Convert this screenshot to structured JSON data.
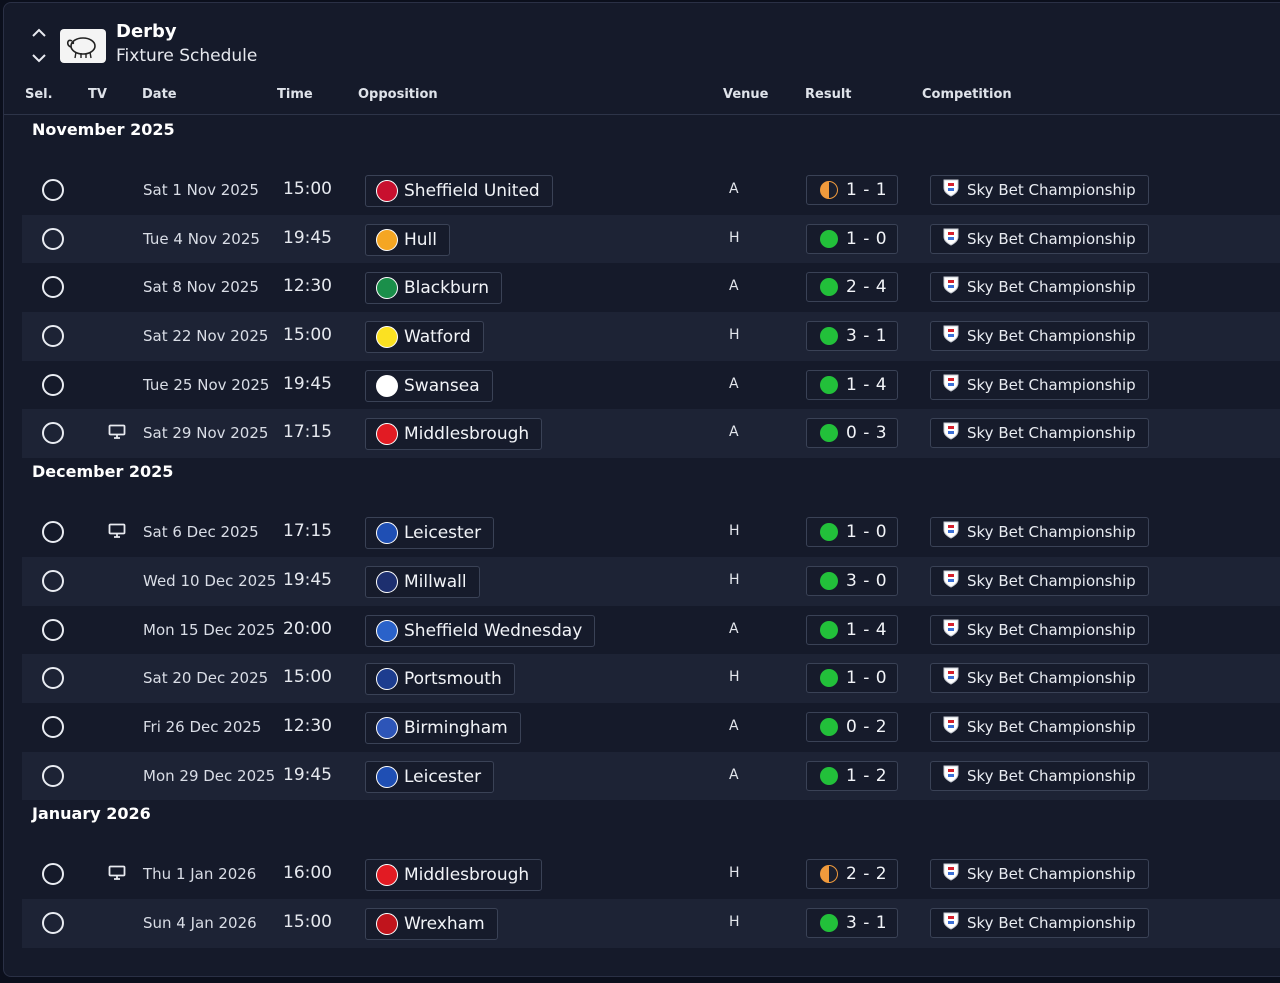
{
  "header": {
    "team": "Derby",
    "subtitle": "Fixture Schedule",
    "up_icon": "chevron-up-icon",
    "down_icon": "chevron-down-icon",
    "badge_icon": "ram-badge-icon"
  },
  "columns": {
    "sel": "Sel.",
    "tv": "TV",
    "date": "Date",
    "time": "Time",
    "opposition": "Opposition",
    "venue": "Venue",
    "result": "Result",
    "competition": "Competition"
  },
  "colors": {
    "win": "#22c03a",
    "draw_left": "#f09a3c",
    "draw_right": "#1a1f2e"
  },
  "months": [
    {
      "label": "November 2025",
      "fixtures": [
        {
          "tv": false,
          "date": "Sat 1 Nov 2025",
          "time": "15:00",
          "opponent": "Sheffield United",
          "crest": "#c8102e",
          "venue": "A",
          "outcome": "draw",
          "score": "1 - 1",
          "competition": "Sky Bet Championship"
        },
        {
          "tv": false,
          "date": "Tue 4 Nov 2025",
          "time": "19:45",
          "opponent": "Hull",
          "crest": "#f5a623",
          "venue": "H",
          "outcome": "win",
          "score": "1 - 0",
          "competition": "Sky Bet Championship"
        },
        {
          "tv": false,
          "date": "Sat 8 Nov 2025",
          "time": "12:30",
          "opponent": "Blackburn",
          "crest": "#1a8f4a",
          "venue": "A",
          "outcome": "win",
          "score": "2 - 4",
          "competition": "Sky Bet Championship"
        },
        {
          "tv": false,
          "date": "Sat 22 Nov 2025",
          "time": "15:00",
          "opponent": "Watford",
          "crest": "#fbe122",
          "venue": "H",
          "outcome": "win",
          "score": "3 - 1",
          "competition": "Sky Bet Championship"
        },
        {
          "tv": false,
          "date": "Tue 25 Nov 2025",
          "time": "19:45",
          "opponent": "Swansea",
          "crest": "#ffffff",
          "venue": "A",
          "outcome": "win",
          "score": "1 - 4",
          "competition": "Sky Bet Championship"
        },
        {
          "tv": true,
          "date": "Sat 29 Nov 2025",
          "time": "17:15",
          "opponent": "Middlesbrough",
          "crest": "#e21b23",
          "venue": "A",
          "outcome": "win",
          "score": "0 - 3",
          "competition": "Sky Bet Championship"
        }
      ]
    },
    {
      "label": "December 2025",
      "fixtures": [
        {
          "tv": true,
          "date": "Sat 6 Dec 2025",
          "time": "17:15",
          "opponent": "Leicester",
          "crest": "#1f4fb4",
          "venue": "H",
          "outcome": "win",
          "score": "1 - 0",
          "competition": "Sky Bet Championship"
        },
        {
          "tv": false,
          "date": "Wed 10 Dec 2025",
          "time": "19:45",
          "opponent": "Millwall",
          "crest": "#1d2f6f",
          "venue": "H",
          "outcome": "win",
          "score": "3 - 0",
          "competition": "Sky Bet Championship"
        },
        {
          "tv": false,
          "date": "Mon 15 Dec 2025",
          "time": "20:00",
          "opponent": "Sheffield Wednesday",
          "crest": "#2a62c9",
          "venue": "A",
          "outcome": "win",
          "score": "1 - 4",
          "competition": "Sky Bet Championship"
        },
        {
          "tv": false,
          "date": "Sat 20 Dec 2025",
          "time": "15:00",
          "opponent": "Portsmouth",
          "crest": "#1d3d8f",
          "venue": "H",
          "outcome": "win",
          "score": "1 - 0",
          "competition": "Sky Bet Championship"
        },
        {
          "tv": false,
          "date": "Fri 26 Dec 2025",
          "time": "12:30",
          "opponent": "Birmingham",
          "crest": "#2d55b8",
          "venue": "A",
          "outcome": "win",
          "score": "0 - 2",
          "competition": "Sky Bet Championship"
        },
        {
          "tv": false,
          "date": "Mon 29 Dec 2025",
          "time": "19:45",
          "opponent": "Leicester",
          "crest": "#1f4fb4",
          "venue": "A",
          "outcome": "win",
          "score": "1 - 2",
          "competition": "Sky Bet Championship"
        }
      ]
    },
    {
      "label": "January 2026",
      "fixtures": [
        {
          "tv": true,
          "date": "Thu 1 Jan 2026",
          "time": "16:00",
          "opponent": "Middlesbrough",
          "crest": "#e21b23",
          "venue": "H",
          "outcome": "draw",
          "score": "2 - 2",
          "competition": "Sky Bet Championship"
        },
        {
          "tv": false,
          "date": "Sun 4 Jan 2026",
          "time": "15:00",
          "opponent": "Wrexham",
          "crest": "#c0141c",
          "venue": "H",
          "outcome": "win",
          "score": "3 - 1",
          "competition": "Sky Bet Championship"
        }
      ]
    }
  ]
}
